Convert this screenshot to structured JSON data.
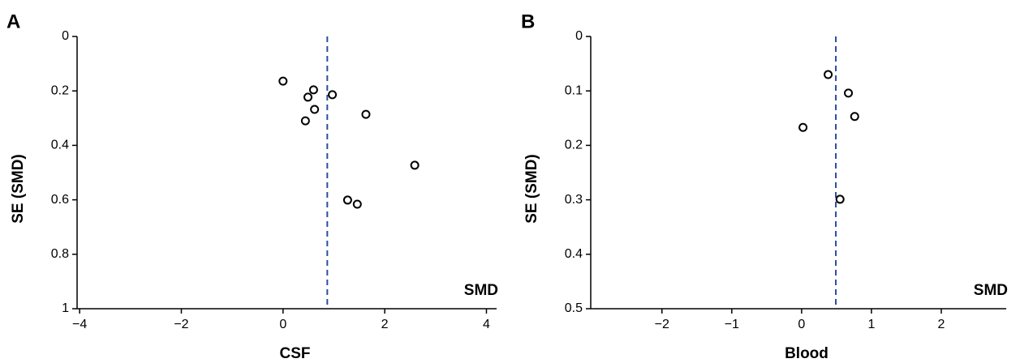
{
  "chart_data": [
    {
      "type": "scatter",
      "panel_label": "A",
      "x_label": "CSF",
      "y_label": "SE (SMD)",
      "annotation": "SMD",
      "x": [
        0,
        0.6,
        0.49,
        0.97,
        0.62,
        0.44,
        1.63,
        2.59,
        1.27,
        1.46
      ],
      "values": [
        0.164,
        0.196,
        0.223,
        0.214,
        0.268,
        0.31,
        0.286,
        0.473,
        0.601,
        0.616
      ],
      "reference_x": 0.87,
      "reference_color": "#2a4fa0",
      "xlim": [
        -4.05,
        4.2
      ],
      "ylim": [
        0,
        1
      ],
      "y_inverted": true,
      "xticks": [
        {
          "value": -4,
          "label": "−4"
        },
        {
          "value": -2,
          "label": "−2"
        },
        0,
        2,
        4
      ],
      "yticks": [
        0,
        0.2,
        0.4,
        0.6,
        0.8,
        1
      ]
    },
    {
      "type": "scatter",
      "panel_label": "B",
      "x_label": "Blood",
      "y_label": "SE (SMD)",
      "annotation": "SMD",
      "x": [
        0.38,
        0.67,
        0.76,
        0.02,
        0.55
      ],
      "values": [
        0.07,
        0.104,
        0.147,
        0.167,
        0.299
      ],
      "reference_x": 0.49,
      "reference_color": "#2a4fa0",
      "xlim": [
        -3.02,
        2.93
      ],
      "ylim": [
        0,
        0.5
      ],
      "y_inverted": true,
      "xticks": [
        {
          "value": -2,
          "label": "−2"
        },
        {
          "value": -1,
          "label": "−1"
        },
        0,
        1,
        2
      ],
      "yticks": [
        0,
        0.1,
        0.2,
        0.3,
        0.4,
        0.5
      ]
    }
  ]
}
